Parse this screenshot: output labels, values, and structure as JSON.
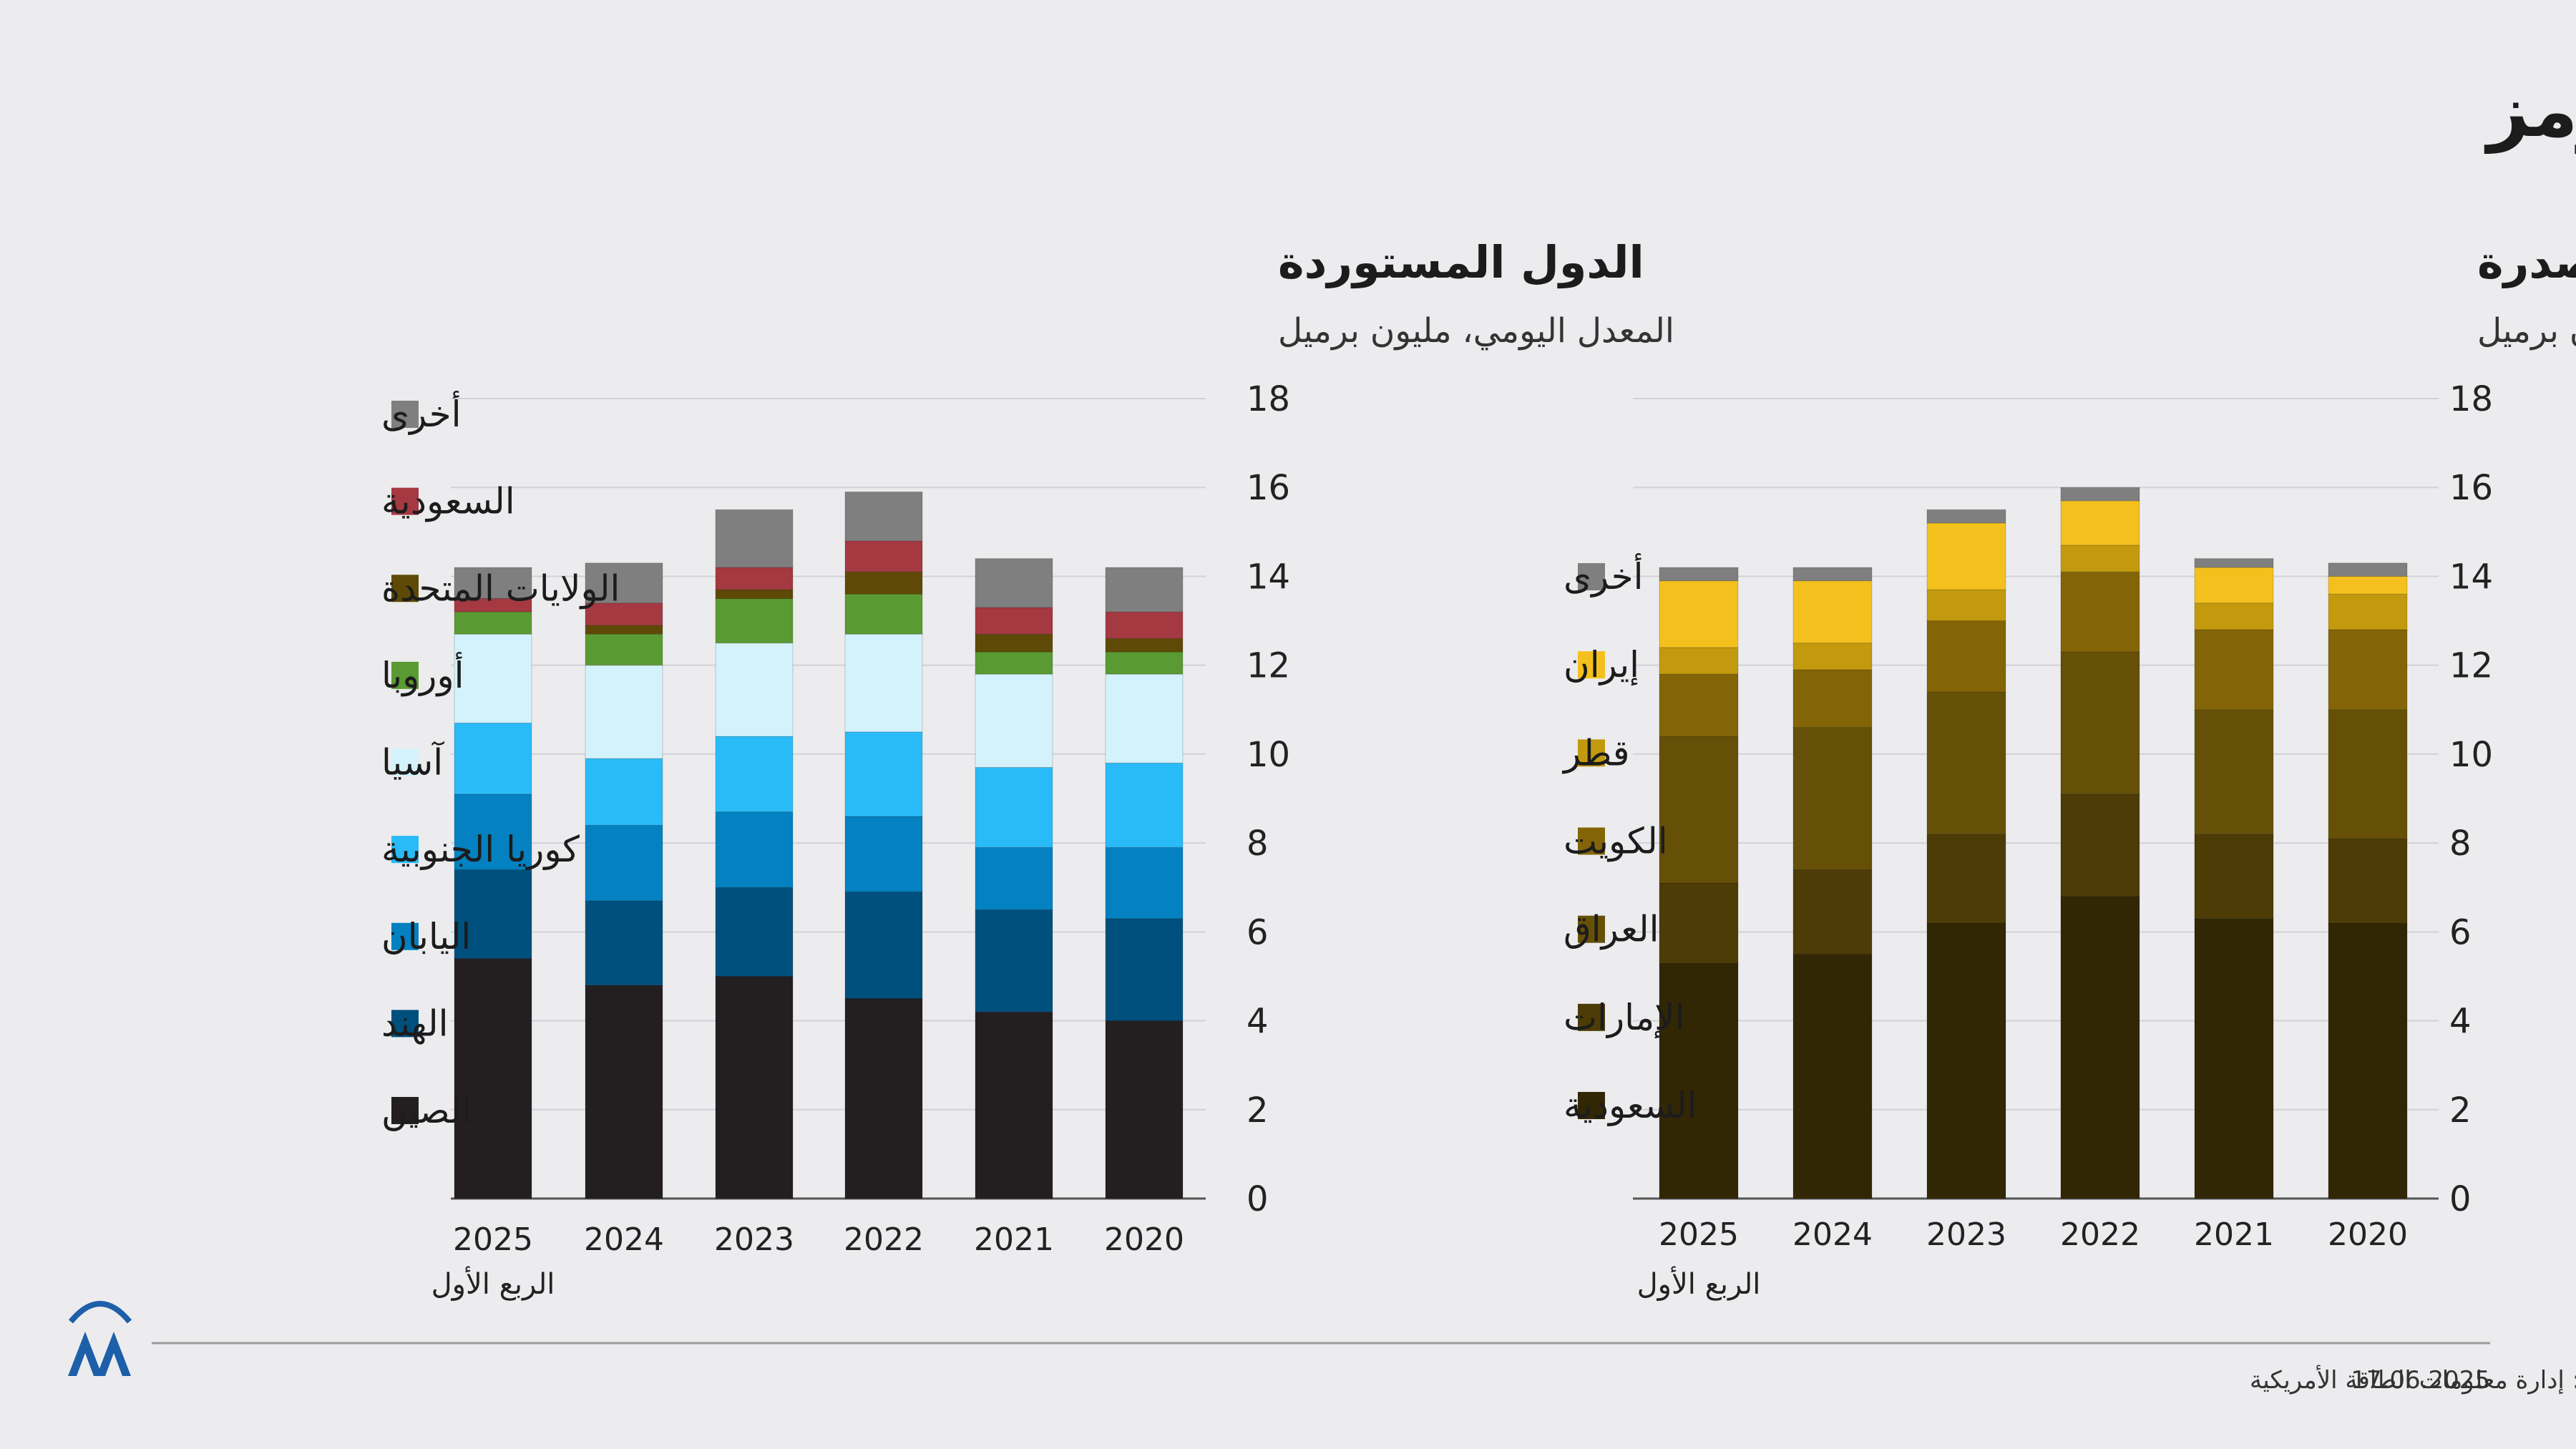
{
  "title": "كمية النفط الخام المنقولة عبر مضيق هرمز",
  "footer": {
    "source": "المصدر: إدارة معلومات الطاقة الأمريكية",
    "date": "17.06.2025"
  },
  "brand": {
    "accent": "#1d5fa8"
  },
  "chart_data": [
    {
      "type": "bar",
      "stacked": true,
      "id": "importers",
      "title": "الدول المستوردة",
      "subtitle": "المعدل اليومي، مليون برميل",
      "categories": [
        "2025",
        "2024",
        "2023",
        "2022",
        "2021",
        "2020"
      ],
      "category_sublabel": "الربع الأول",
      "ylim": [
        0,
        18
      ],
      "yticks": [
        0,
        2,
        4,
        6,
        8,
        10,
        12,
        14,
        16,
        18
      ],
      "grid": true,
      "series": [
        {
          "name": "الصين",
          "color": "#231f20",
          "values": [
            5.4,
            4.8,
            5.0,
            4.5,
            4.2,
            4.0
          ]
        },
        {
          "name": "الهند",
          "color": "#00507e",
          "values": [
            2.0,
            1.9,
            2.0,
            2.4,
            2.3,
            2.3
          ]
        },
        {
          "name": "اليابان",
          "color": "#0381c0",
          "values": [
            1.7,
            1.7,
            1.7,
            1.7,
            1.4,
            1.6
          ]
        },
        {
          "name": "كوريا الجنوبية",
          "color": "#29bbf8",
          "values": [
            1.6,
            1.5,
            1.7,
            1.9,
            1.8,
            1.9
          ]
        },
        {
          "name": "آسيا",
          "color": "#d4f2fc",
          "values": [
            2.0,
            2.1,
            2.1,
            2.2,
            2.1,
            2.0
          ]
        },
        {
          "name": "أوروبا",
          "color": "#5a9a32",
          "values": [
            0.5,
            0.7,
            1.0,
            0.9,
            0.5,
            0.5
          ]
        },
        {
          "name": "الولايات المتحدة",
          "color": "#5e4a06",
          "values": [
            0.0,
            0.2,
            0.2,
            0.5,
            0.4,
            0.3
          ]
        },
        {
          "name": "السعودية",
          "color": "#a43942",
          "values": [
            0.3,
            0.5,
            0.5,
            0.7,
            0.6,
            0.6
          ]
        },
        {
          "name": "أخرى",
          "color": "#7f7f7f",
          "values": [
            0.7,
            0.9,
            1.3,
            1.1,
            1.1,
            1.0
          ]
        }
      ]
    },
    {
      "type": "bar",
      "stacked": true,
      "id": "exporters",
      "title": "الدول المصدرة",
      "subtitle": "المعدل اليومي، مليون برميل",
      "categories": [
        "2025",
        "2024",
        "2023",
        "2022",
        "2021",
        "2020"
      ],
      "category_sublabel": "الربع الأول",
      "ylim": [
        0,
        18
      ],
      "yticks": [
        0,
        2,
        4,
        6,
        8,
        10,
        12,
        14,
        16,
        18
      ],
      "grid": true,
      "series": [
        {
          "name": "السعودية",
          "color": "#322705",
          "values": [
            5.3,
            5.5,
            6.2,
            6.8,
            6.3,
            6.2
          ]
        },
        {
          "name": "الإمارات",
          "color": "#4d3c06",
          "values": [
            1.8,
            1.9,
            2.0,
            2.3,
            1.9,
            1.9
          ]
        },
        {
          "name": "العراق",
          "color": "#665008",
          "values": [
            3.3,
            3.2,
            3.2,
            3.2,
            2.8,
            2.9
          ]
        },
        {
          "name": "الكويت",
          "color": "#836507",
          "values": [
            1.4,
            1.3,
            1.6,
            1.8,
            1.8,
            1.8
          ]
        },
        {
          "name": "قطر",
          "color": "#c39a0e",
          "values": [
            0.6,
            0.6,
            0.7,
            0.6,
            0.6,
            0.8
          ]
        },
        {
          "name": "إيران",
          "color": "#f4c01d",
          "values": [
            1.5,
            1.4,
            1.5,
            1.0,
            0.8,
            0.4
          ]
        },
        {
          "name": "أخرى",
          "color": "#7f7f7f",
          "values": [
            0.3,
            0.3,
            0.3,
            0.3,
            0.2,
            0.3
          ]
        }
      ]
    }
  ]
}
